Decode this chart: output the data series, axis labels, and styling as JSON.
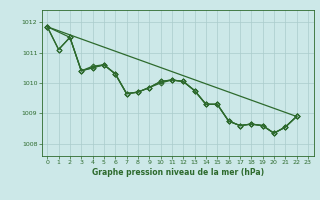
{
  "title": "Graphe pression niveau de la mer (hPa)",
  "background_color": "#cce8e8",
  "grid_color": "#aacccc",
  "line_color": "#2d6a2d",
  "xlim": [
    -0.5,
    23.5
  ],
  "ylim": [
    1007.6,
    1012.4
  ],
  "yticks": [
    1008,
    1009,
    1010,
    1011,
    1012
  ],
  "xticks": [
    0,
    1,
    2,
    3,
    4,
    5,
    6,
    7,
    8,
    9,
    10,
    11,
    12,
    13,
    14,
    15,
    16,
    17,
    18,
    19,
    20,
    21,
    22,
    23
  ],
  "line1_x": [
    0,
    1,
    2,
    3,
    4,
    5,
    6,
    7,
    8,
    9,
    10,
    11,
    12,
    13,
    14,
    15,
    16,
    17,
    18,
    19,
    20,
    21,
    22
  ],
  "line1_y": [
    1011.85,
    1011.1,
    1011.5,
    1010.4,
    1010.5,
    1010.6,
    1010.3,
    1009.65,
    1009.7,
    1009.85,
    1010.0,
    1010.1,
    1010.05,
    1009.75,
    1009.3,
    1009.3,
    1008.75,
    1008.6,
    1008.65,
    1008.6,
    1008.35,
    1008.55,
    1008.9
  ],
  "line2_x": [
    0,
    1,
    2,
    3,
    4,
    5,
    6,
    7,
    8,
    9,
    10,
    11,
    12,
    13,
    14,
    15,
    16,
    17,
    18,
    19,
    20,
    21,
    22
  ],
  "line2_y": [
    1011.85,
    1011.1,
    1011.5,
    1010.4,
    1010.55,
    1010.6,
    1010.3,
    1009.65,
    1009.7,
    1009.85,
    1010.05,
    1010.1,
    1010.05,
    1009.75,
    1009.3,
    1009.3,
    1008.75,
    1008.6,
    1008.65,
    1008.6,
    1008.35,
    1008.55,
    1008.9
  ],
  "line3_x": [
    0,
    2,
    3,
    4,
    5,
    6,
    7,
    8,
    9,
    10,
    11,
    12,
    13,
    14,
    15,
    16,
    17,
    18,
    19,
    20,
    21,
    22
  ],
  "line3_y": [
    1011.85,
    1011.5,
    1010.4,
    1010.5,
    1010.6,
    1010.3,
    1009.65,
    1009.7,
    1009.85,
    1010.05,
    1010.1,
    1010.05,
    1009.75,
    1009.3,
    1009.3,
    1008.75,
    1008.6,
    1008.65,
    1008.6,
    1008.35,
    1008.55,
    1008.9
  ],
  "line4_x": [
    0,
    22
  ],
  "line4_y": [
    1011.85,
    1008.9
  ]
}
